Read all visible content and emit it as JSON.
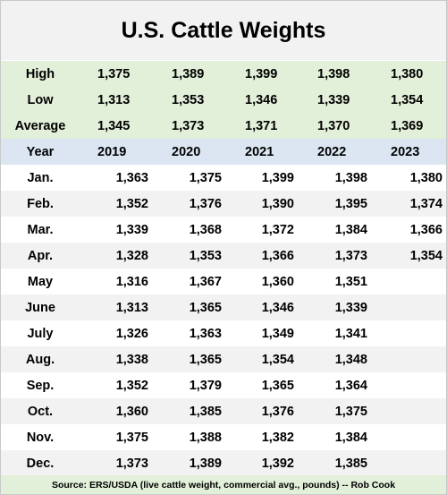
{
  "title": "U.S. Cattle Weights",
  "source": "Source:  ERS/USDA (live cattle weight, commercial avg., pounds) -- Rob Cook",
  "chart_data": {
    "type": "table",
    "title": "U.S. Cattle Weights",
    "summary": [
      {
        "label": "High",
        "values": [
          "1,375",
          "1,389",
          "1,399",
          "1,398",
          "1,380"
        ]
      },
      {
        "label": "Low",
        "values": [
          "1,313",
          "1,353",
          "1,346",
          "1,339",
          "1,354"
        ]
      },
      {
        "label": "Average",
        "values": [
          "1,345",
          "1,373",
          "1,371",
          "1,370",
          "1,369"
        ]
      }
    ],
    "header": {
      "label": "Year",
      "years": [
        "2019",
        "2020",
        "2021",
        "2022",
        "2023"
      ]
    },
    "months": [
      {
        "label": "Jan.",
        "values": [
          "1,363",
          "1,375",
          "1,399",
          "1,398",
          "1,380"
        ]
      },
      {
        "label": "Feb.",
        "values": [
          "1,352",
          "1,376",
          "1,390",
          "1,395",
          "1,374"
        ]
      },
      {
        "label": "Mar.",
        "values": [
          "1,339",
          "1,368",
          "1,372",
          "1,384",
          "1,366"
        ]
      },
      {
        "label": "Apr.",
        "values": [
          "1,328",
          "1,353",
          "1,366",
          "1,373",
          "1,354"
        ]
      },
      {
        "label": "May",
        "values": [
          "1,316",
          "1,367",
          "1,360",
          "1,351",
          ""
        ]
      },
      {
        "label": "June",
        "values": [
          "1,313",
          "1,365",
          "1,346",
          "1,339",
          ""
        ]
      },
      {
        "label": "July",
        "values": [
          "1,326",
          "1,363",
          "1,349",
          "1,341",
          ""
        ]
      },
      {
        "label": "Aug.",
        "values": [
          "1,338",
          "1,365",
          "1,354",
          "1,348",
          ""
        ]
      },
      {
        "label": "Sep.",
        "values": [
          "1,352",
          "1,379",
          "1,365",
          "1,364",
          ""
        ]
      },
      {
        "label": "Oct.",
        "values": [
          "1,360",
          "1,385",
          "1,376",
          "1,375",
          ""
        ]
      },
      {
        "label": "Nov.",
        "values": [
          "1,375",
          "1,388",
          "1,382",
          "1,384",
          ""
        ]
      },
      {
        "label": "Dec.",
        "values": [
          "1,373",
          "1,389",
          "1,392",
          "1,385",
          ""
        ]
      }
    ]
  }
}
